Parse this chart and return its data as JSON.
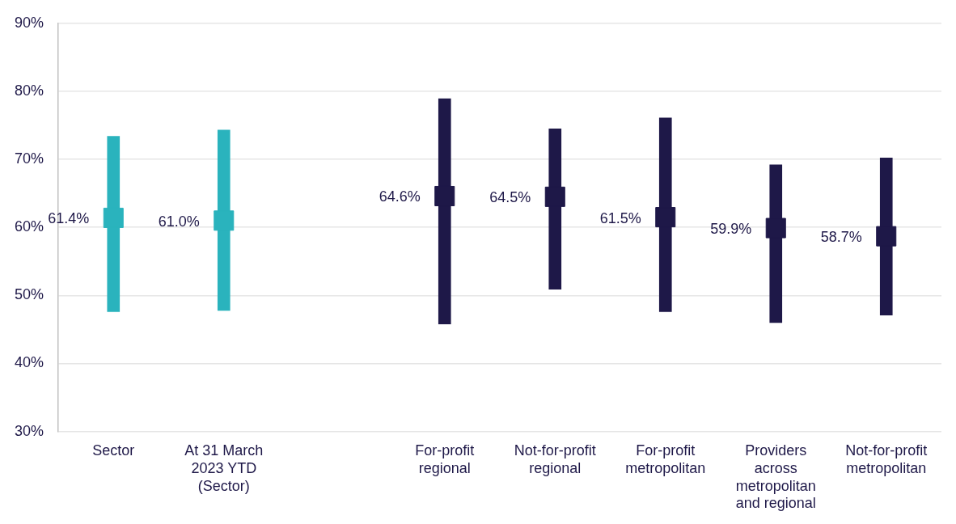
{
  "chart_data": {
    "type": "bar",
    "categories": [
      "Sector",
      "At 31 March 2023 YTD (Sector)",
      null,
      "For-profit regional",
      "Not-for-profit regional",
      "For-profit metropolitan",
      "Providers across metropolitan and regional",
      "Not-for-profit metropolitan"
    ],
    "series": [
      {
        "colors": [
          "#2ab3bd",
          "#2ab3bd",
          null,
          "#1e1848",
          "#1e1848",
          "#1e1848",
          "#1e1848",
          "#1e1848"
        ],
        "base": [
          47.6,
          47.8,
          null,
          45.8,
          50.9,
          47.6,
          46.0,
          47.1
        ],
        "values": [
          25.8,
          26.5,
          null,
          33.1,
          23.6,
          28.5,
          23.2,
          23.1
        ]
      },
      {
        "type": "scatter",
        "marker": "square",
        "colors": [
          "#2ab3bd",
          "#2ab3bd",
          null,
          "#1e1848",
          "#1e1848",
          "#1e1848",
          "#1e1848",
          "#1e1848"
        ],
        "values": [
          61.4,
          61.0,
          null,
          64.6,
          64.5,
          61.5,
          59.9,
          58.7
        ],
        "value_labels": [
          "61.4%",
          "61.0%",
          null,
          "64.6%",
          "64.5%",
          "61.5%",
          "59.9%",
          "58.7%"
        ]
      }
    ],
    "ylim": [
      30,
      90
    ],
    "yticks": [
      {
        "value": 30,
        "label": "30%"
      },
      {
        "value": 40,
        "label": "40%"
      },
      {
        "value": 50,
        "label": "50%"
      },
      {
        "value": 60,
        "label": "60%"
      },
      {
        "value": 70,
        "label": "70%"
      },
      {
        "value": 80,
        "label": "80%"
      },
      {
        "value": 90,
        "label": "90%"
      }
    ],
    "grid": "y",
    "legend": false
  }
}
